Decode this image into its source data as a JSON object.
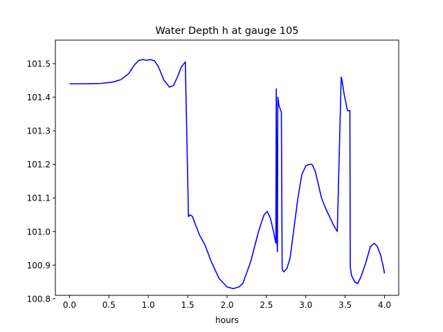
{
  "chart_data": {
    "type": "line",
    "title": "Water Depth h at gauge 105",
    "xlabel": "hours",
    "ylabel": "",
    "xlim": [
      -0.18,
      4.18
    ],
    "ylim": [
      100.81,
      101.57
    ],
    "grid": false,
    "legend": "none",
    "x_ticks": [
      0.0,
      0.5,
      1.0,
      1.5,
      2.0,
      2.5,
      3.0,
      3.5,
      4.0
    ],
    "x_tick_labels": [
      "0.0",
      "0.5",
      "1.0",
      "1.5",
      "2.0",
      "2.5",
      "3.0",
      "3.5",
      "4.0"
    ],
    "y_ticks": [
      100.8,
      100.9,
      101.0,
      101.1,
      101.2,
      101.3,
      101.4,
      101.5
    ],
    "y_tick_labels": [
      "100.8",
      "100.9",
      "101.0",
      "101.1",
      "101.2",
      "101.3",
      "101.4",
      "101.5"
    ],
    "series": [
      {
        "color": "#0000ff",
        "x": [
          0.0,
          0.2,
          0.4,
          0.55,
          0.65,
          0.75,
          0.82,
          0.88,
          0.93,
          0.98,
          1.03,
          1.08,
          1.13,
          1.2,
          1.27,
          1.32,
          1.37,
          1.42,
          1.47,
          1.51,
          1.515,
          1.53,
          1.56,
          1.6,
          1.65,
          1.72,
          1.8,
          1.9,
          2.0,
          2.08,
          2.15,
          2.2,
          2.3,
          2.4,
          2.47,
          2.51,
          2.55,
          2.59,
          2.615,
          2.62,
          2.625,
          2.635,
          2.64,
          2.645,
          2.66,
          2.69,
          2.7,
          2.705,
          2.72,
          2.76,
          2.8,
          2.85,
          2.9,
          2.95,
          3.0,
          3.04,
          3.08,
          3.12,
          3.16,
          3.2,
          3.25,
          3.3,
          3.35,
          3.4,
          3.45,
          3.455,
          3.46,
          3.49,
          3.53,
          3.56,
          3.565,
          3.58,
          3.62,
          3.66,
          3.7,
          3.76,
          3.82,
          3.87,
          3.91,
          3.95,
          3.98,
          4.0
        ],
        "y": [
          101.44,
          101.44,
          101.441,
          101.445,
          101.452,
          101.47,
          101.495,
          101.51,
          101.512,
          101.51,
          101.512,
          101.508,
          101.49,
          101.45,
          101.43,
          101.435,
          101.46,
          101.49,
          101.505,
          101.045,
          101.045,
          101.05,
          101.045,
          101.02,
          100.99,
          100.96,
          100.91,
          100.86,
          100.835,
          100.83,
          100.835,
          100.845,
          100.91,
          101.0,
          101.05,
          101.06,
          101.04,
          101.0,
          100.97,
          100.965,
          101.425,
          100.97,
          100.94,
          101.4,
          101.375,
          101.355,
          100.89,
          100.885,
          100.88,
          100.89,
          100.92,
          101.01,
          101.1,
          101.17,
          101.195,
          101.2,
          101.2,
          101.18,
          101.14,
          101.1,
          101.07,
          101.045,
          101.02,
          101.0,
          101.46,
          101.455,
          101.45,
          101.405,
          101.36,
          101.36,
          100.895,
          100.87,
          100.85,
          100.845,
          100.865,
          100.905,
          100.955,
          100.965,
          100.955,
          100.93,
          100.9,
          100.875
        ]
      }
    ]
  }
}
